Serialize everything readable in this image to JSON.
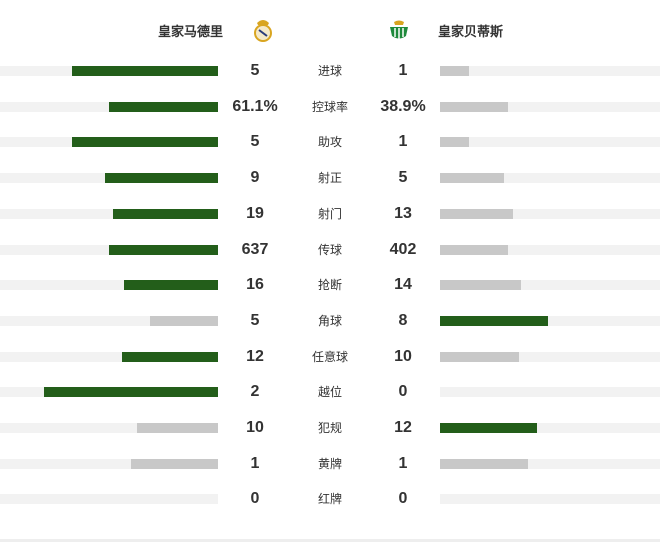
{
  "home": {
    "name": "皇家马德里",
    "logo": "real-madrid-crest-icon"
  },
  "away": {
    "name": "皇家贝蒂斯",
    "logo": "real-betis-crest-icon"
  },
  "colors": {
    "lead": "#235e1a",
    "trail": "#c8c8c8",
    "track": "#f2f2f2"
  },
  "stats": [
    {
      "label": "进球",
      "home": "5",
      "away": "1",
      "home_fill": 0.67,
      "away_fill": 0.13,
      "leader": "home"
    },
    {
      "label": "控球率",
      "home": "61.1%",
      "away": "38.9%",
      "home_fill": 0.5,
      "away_fill": 0.31,
      "leader": "home"
    },
    {
      "label": "助攻",
      "home": "5",
      "away": "1",
      "home_fill": 0.67,
      "away_fill": 0.13,
      "leader": "home"
    },
    {
      "label": "射正",
      "home": "9",
      "away": "5",
      "home_fill": 0.52,
      "away_fill": 0.29,
      "leader": "home"
    },
    {
      "label": "射门",
      "home": "19",
      "away": "13",
      "home_fill": 0.48,
      "away_fill": 0.33,
      "leader": "home"
    },
    {
      "label": "传球",
      "home": "637",
      "away": "402",
      "home_fill": 0.5,
      "away_fill": 0.31,
      "leader": "home"
    },
    {
      "label": "抢断",
      "home": "16",
      "away": "14",
      "home_fill": 0.43,
      "away_fill": 0.37,
      "leader": "home"
    },
    {
      "label": "角球",
      "home": "5",
      "away": "8",
      "home_fill": 0.31,
      "away_fill": 0.49,
      "leader": "away"
    },
    {
      "label": "任意球",
      "home": "12",
      "away": "10",
      "home_fill": 0.44,
      "away_fill": 0.36,
      "leader": "home"
    },
    {
      "label": "越位",
      "home": "2",
      "away": "0",
      "home_fill": 0.8,
      "away_fill": 0,
      "leader": "home"
    },
    {
      "label": "犯规",
      "home": "10",
      "away": "12",
      "home_fill": 0.37,
      "away_fill": 0.44,
      "leader": "away"
    },
    {
      "label": "黄牌",
      "home": "1",
      "away": "1",
      "home_fill": 0.4,
      "away_fill": 0.4,
      "leader": "none"
    },
    {
      "label": "红牌",
      "home": "0",
      "away": "0",
      "home_fill": 0,
      "away_fill": 0,
      "leader": "none"
    }
  ]
}
